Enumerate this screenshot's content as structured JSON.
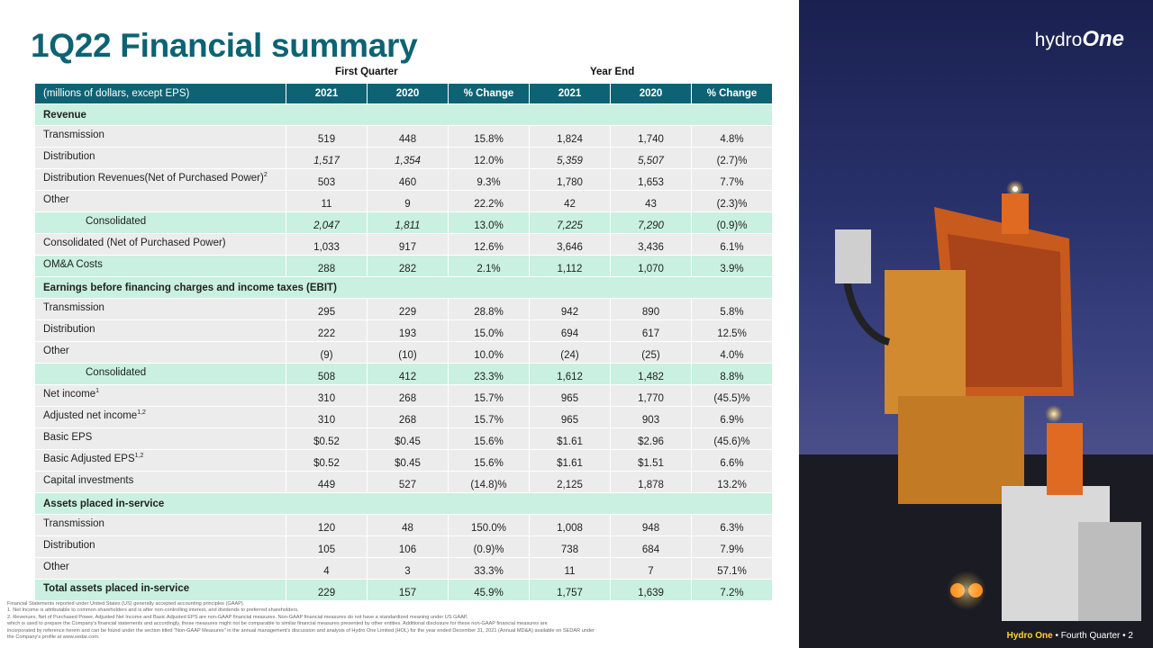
{
  "title": "1Q22 Financial summary",
  "group_labels": {
    "first_quarter": "First Quarter",
    "year_end": "Year End"
  },
  "header": [
    "(millions of dollars, except EPS)",
    "2021",
    "2020",
    "% Change",
    "2021",
    "2020",
    "% Change"
  ],
  "sections": {
    "revenue": "Revenue",
    "ebit": "Earnings before financing charges and income taxes (EBIT)",
    "assets": "Assets placed in-service"
  },
  "rows": {
    "rev_transmission": {
      "label": "Transmission",
      "v": [
        "519",
        "448",
        "15.8%",
        "1,824",
        "1,740",
        "4.8%"
      ]
    },
    "rev_distribution": {
      "label": "Distribution",
      "v": [
        "1,517",
        "1,354",
        "12.0%",
        "5,359",
        "5,507",
        "(2.7)%"
      ]
    },
    "rev_dist_net": {
      "label": "Distribution Revenues(Net of Purchased Power)",
      "sup": "2",
      "v": [
        "503",
        "460",
        "9.3%",
        "1,780",
        "1,653",
        "7.7%"
      ]
    },
    "rev_other": {
      "label": "Other",
      "v": [
        "11",
        "9",
        "22.2%",
        "42",
        "43",
        "(2.3)%"
      ]
    },
    "rev_consolidated": {
      "label": "Consolidated",
      "v": [
        "2,047",
        "1,811",
        "13.0%",
        "7,225",
        "7,290",
        "(0.9)%"
      ]
    },
    "rev_consolidated_net": {
      "label": "Consolidated (Net of Purchased Power)",
      "v": [
        "1,033",
        "917",
        "12.6%",
        "3,646",
        "3,436",
        "6.1%"
      ]
    },
    "oma": {
      "label": "OM&A Costs",
      "v": [
        "288",
        "282",
        "2.1%",
        "1,112",
        "1,070",
        "3.9%"
      ]
    },
    "ebit_transmission": {
      "label": "Transmission",
      "v": [
        "295",
        "229",
        "28.8%",
        "942",
        "890",
        "5.8%"
      ]
    },
    "ebit_distribution": {
      "label": "Distribution",
      "v": [
        "222",
        "193",
        "15.0%",
        "694",
        "617",
        "12.5%"
      ]
    },
    "ebit_other": {
      "label": "Other",
      "v": [
        "(9)",
        "(10)",
        "10.0%",
        "(24)",
        "(25)",
        "4.0%"
      ]
    },
    "ebit_consolidated": {
      "label": "Consolidated",
      "v": [
        "508",
        "412",
        "23.3%",
        "1,612",
        "1,482",
        "8.8%"
      ]
    },
    "net_income": {
      "label": "Net income",
      "sup": "1",
      "v": [
        "310",
        "268",
        "15.7%",
        "965",
        "1,770",
        "(45.5)%"
      ]
    },
    "adj_net_income": {
      "label": "Adjusted net income",
      "sup": "1,2",
      "v": [
        "310",
        "268",
        "15.7%",
        "965",
        "903",
        "6.9%"
      ]
    },
    "basic_eps": {
      "label": "Basic EPS",
      "v": [
        "$0.52",
        "$0.45",
        "15.6%",
        "$1.61",
        "$2.96",
        "(45.6)%"
      ]
    },
    "basic_adj_eps": {
      "label": "Basic Adjusted EPS",
      "sup": "1,2",
      "v": [
        "$0.52",
        "$0.45",
        "15.6%",
        "$1.61",
        "$1.51",
        "6.6%"
      ]
    },
    "capex": {
      "label": "Capital investments",
      "v": [
        "449",
        "527",
        "(14.8)%",
        "2,125",
        "1,878",
        "13.2%"
      ]
    },
    "asset_transmission": {
      "label": "Transmission",
      "v": [
        "120",
        "48",
        "150.0%",
        "1,008",
        "948",
        "6.3%"
      ]
    },
    "asset_distribution": {
      "label": "Distribution",
      "v": [
        "105",
        "106",
        "(0.9)%",
        "738",
        "684",
        "7.9%"
      ]
    },
    "asset_other": {
      "label": "Other",
      "v": [
        "4",
        "3",
        "33.3%",
        "11",
        "7",
        "57.1%"
      ]
    },
    "asset_total": {
      "label": "Total assets placed in-service",
      "v": [
        "229",
        "157",
        "45.9%",
        "1,757",
        "1,639",
        "7.2%"
      ]
    }
  },
  "footnotes": [
    "Financial Statements reported under United States (US) generally accepted accounting principles (GAAP).",
    "1.        Net Income is attributable to common shareholders and is after non-controlling interest, and dividends to preferred shareholders.",
    "2.        Revenues, Net of Purchased Power, Adjusted Net Income and Basic Adjusted EPS are non-GAAP financial measures. Non-GAAP financial measures do not have a standardized meaning under US GAAP,",
    "which is used to prepare the Company's financial statements and accordingly, these measures might not be comparable to similar financial measures presented by other entities. Additional disclosure for these non-GAAP financial measures are",
    " incorporated by reference herein and can be found under the section titled \"Non-GAAP Measures\" in the annual management's discussion and analysis of Hydro One Limited (HOL) for the year ended December 31, 2021 (Annual MD&A) available on SEDAR under",
    "the Company's profile at www.sedar.com."
  ],
  "logo": {
    "text": "hydro",
    "bold": "One"
  },
  "footer": {
    "brand": "Hydro One",
    "text": " • Fourth Quarter • 2"
  },
  "colors": {
    "header": "#0d6373",
    "section": "#c9f0e1",
    "row": "#ececec",
    "title": "#0d6373"
  }
}
